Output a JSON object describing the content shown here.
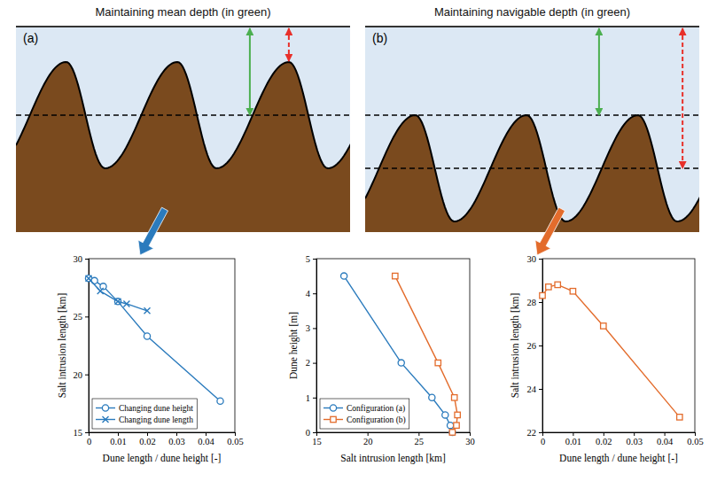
{
  "diagram": {
    "panels": [
      {
        "letter": "(a)",
        "title": "Maintaining mean depth (in green)"
      },
      {
        "letter": "(b)",
        "title": "Maintaining navigable depth (in green)"
      }
    ]
  },
  "chart_data": [
    {
      "type": "line",
      "xlabel": "Dune length / dune height [-]",
      "ylabel": "Salt intrusion length [km]",
      "xlim": [
        0,
        0.05
      ],
      "xticks": [
        0,
        0.01,
        0.02,
        0.03,
        0.04,
        0.05
      ],
      "ylim": [
        15,
        30
      ],
      "yticks": [
        15,
        20,
        25,
        30
      ],
      "legend": "lower left",
      "series": [
        {
          "name": "Changing dune height",
          "color": "#2b7bbd",
          "marker": "circle",
          "line_style": "solid",
          "x": [
            0,
            0.002,
            0.005,
            0.01,
            0.02,
            0.045
          ],
          "values": [
            28.3,
            28.1,
            27.6,
            26.3,
            23.3,
            17.7
          ]
        },
        {
          "name": "Changing dune length",
          "color": "#2b7bbd",
          "marker": "x",
          "line_style": "solid",
          "x": [
            0,
            0.004,
            0.01,
            0.013,
            0.02
          ],
          "values": [
            28.3,
            27.2,
            26.3,
            26.1,
            25.5
          ]
        }
      ]
    },
    {
      "type": "line",
      "xlabel": "Salt intrusion length [km]",
      "ylabel": "Dune height [m]",
      "xlim": [
        15,
        30
      ],
      "xticks": [
        15,
        20,
        25,
        30
      ],
      "ylim": [
        0,
        5
      ],
      "yticks": [
        0,
        1,
        2,
        3,
        4,
        5
      ],
      "legend": "lower left",
      "series": [
        {
          "name": "Configuration (a)",
          "color": "#2b7bbd",
          "marker": "circle",
          "line_style": "solid",
          "x": [
            17.7,
            23.3,
            26.3,
            27.6,
            28.1,
            28.3
          ],
          "values": [
            4.5,
            2,
            1,
            0.5,
            0.2,
            0
          ]
        },
        {
          "name": "Configuration (b)",
          "color": "#e36c2c",
          "marker": "square",
          "line_style": "solid",
          "x": [
            22.7,
            26.9,
            28.5,
            28.8,
            28.7,
            28.3
          ],
          "values": [
            4.5,
            2,
            1,
            0.5,
            0.2,
            0
          ]
        }
      ]
    },
    {
      "type": "line",
      "xlabel": "Dune length / dune height [-]",
      "ylabel": "Salt intrusion length [km]",
      "xlim": [
        0,
        0.05
      ],
      "xticks": [
        0,
        0.01,
        0.02,
        0.03,
        0.04,
        0.05
      ],
      "ylim": [
        22,
        30
      ],
      "yticks": [
        22,
        24,
        26,
        28,
        30
      ],
      "series": [
        {
          "color": "#e36c2c",
          "marker": "square",
          "line_style": "solid",
          "x": [
            0,
            0.002,
            0.005,
            0.01,
            0.02,
            0.045
          ],
          "values": [
            28.3,
            28.7,
            28.8,
            28.5,
            26.9,
            22.7
          ]
        }
      ]
    }
  ]
}
